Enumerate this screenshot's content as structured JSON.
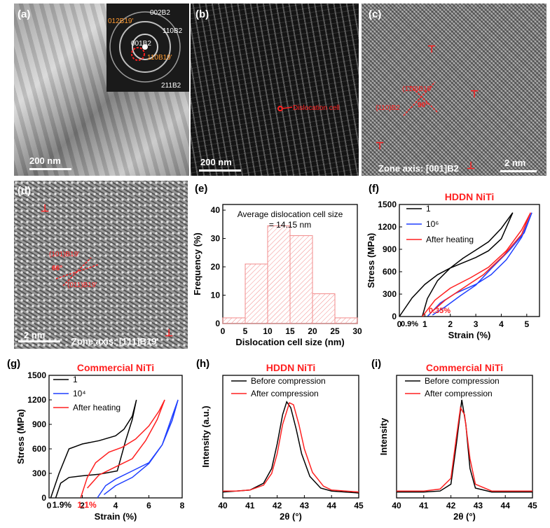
{
  "panels": {
    "a": {
      "label": "(a)",
      "scale": "200 nm",
      "saed": [
        "002B2",
        "110B2",
        "001B2",
        "211B2",
        "012B19'",
        "110B19'"
      ]
    },
    "b": {
      "label": "(b)",
      "scale": "200 nm",
      "annotation": "Dislocation cell"
    },
    "c": {
      "label": "(c)",
      "scale": "2 nm",
      "zone": "Zone axis: [001]B2",
      "plane1": "(1̄10)B19'",
      "plane2": "(110)B2",
      "angle": "90°"
    },
    "d": {
      "label": "(d)",
      "scale": "2 nm",
      "zone": "Zone axis: [1̄11]B19'",
      "plane1": "(101)B19'",
      "plane2": "(011)B19'",
      "angle": "66°"
    }
  },
  "colors": {
    "black": "#000000",
    "blue": "#1f3fff",
    "red": "#ff2020",
    "hist": "#f28b8b"
  },
  "chart_data": [
    {
      "id": "e",
      "label": "(e)",
      "type": "bar",
      "title": "",
      "annotation": "Average dislocation cell size\n= 14.15 nm",
      "xlabel": "Dislocation cell size (nm)",
      "ylabel": "Frequency (%)",
      "bins": [
        [
          0,
          5
        ],
        [
          5,
          10
        ],
        [
          10,
          15
        ],
        [
          15,
          20
        ],
        [
          20,
          25
        ],
        [
          25,
          30
        ]
      ],
      "values": [
        2,
        21,
        34.5,
        31,
        10.5,
        2
      ],
      "xlim": [
        0,
        30
      ],
      "ylim": [
        0,
        42
      ],
      "xticks": [
        0,
        5,
        10,
        15,
        20,
        25,
        30
      ],
      "yticks": [
        0,
        10,
        20,
        30,
        40
      ]
    },
    {
      "id": "f",
      "label": "(f)",
      "type": "line",
      "title": "HDDN NiTi",
      "xlabel": "Strain (%)",
      "ylabel": "Stress (MPa)",
      "xlim": [
        0,
        5.5
      ],
      "ylim": [
        0,
        1500
      ],
      "xticks": [
        0,
        1,
        2,
        3,
        4,
        5
      ],
      "yticks": [
        0,
        300,
        600,
        900,
        1200,
        1500
      ],
      "series": [
        {
          "name": "1",
          "color": "#000000",
          "points": [
            [
              0,
              0
            ],
            [
              0.5,
              250
            ],
            [
              1.0,
              430
            ],
            [
              1.5,
              560
            ],
            [
              2,
              650
            ],
            [
              2.5,
              720
            ],
            [
              3,
              790
            ],
            [
              3.5,
              880
            ],
            [
              4,
              1040
            ],
            [
              4.45,
              1390
            ],
            [
              4.0,
              1180
            ],
            [
              3.5,
              1000
            ],
            [
              3,
              890
            ],
            [
              2.5,
              780
            ],
            [
              2,
              650
            ],
            [
              1.5,
              480
            ],
            [
              1.1,
              240
            ],
            [
              0.9,
              0
            ]
          ]
        },
        {
          "name": "10⁶",
          "color": "#1f3fff",
          "points": [
            [
              1.1,
              0
            ],
            [
              1.6,
              180
            ],
            [
              2.2,
              310
            ],
            [
              3,
              430
            ],
            [
              3.6,
              560
            ],
            [
              4.2,
              760
            ],
            [
              4.8,
              1060
            ],
            [
              5.2,
              1390
            ],
            [
              4.9,
              1120
            ],
            [
              4.3,
              880
            ],
            [
              3.6,
              640
            ],
            [
              3,
              420
            ],
            [
              2.4,
              280
            ],
            [
              1.8,
              130
            ],
            [
              1.3,
              20
            ]
          ]
        },
        {
          "name": "After heating",
          "color": "#ff2020",
          "points": [
            [
              0.9,
              0
            ],
            [
              1.4,
              220
            ],
            [
              2.0,
              380
            ],
            [
              2.8,
              520
            ],
            [
              3.5,
              660
            ],
            [
              4.2,
              880
            ],
            [
              4.8,
              1160
            ],
            [
              5.15,
              1390
            ],
            [
              4.8,
              1100
            ],
            [
              4.1,
              820
            ],
            [
              3.3,
              560
            ],
            [
              2.5,
              380
            ],
            [
              1.8,
              220
            ],
            [
              1.2,
              40
            ]
          ]
        }
      ],
      "annotations": [
        "0.9%",
        "0.35%"
      ]
    },
    {
      "id": "g",
      "label": "(g)",
      "type": "line",
      "title": "Commercial NiTi",
      "xlabel": "Strain (%)",
      "ylabel": "Stress (MPa)",
      "xlim": [
        0,
        8
      ],
      "ylim": [
        0,
        1500
      ],
      "xticks": [
        0,
        2,
        4,
        6,
        8
      ],
      "yticks": [
        0,
        300,
        600,
        900,
        1200,
        1500
      ],
      "series": [
        {
          "name": "1",
          "color": "#000000",
          "points": [
            [
              0.1,
              0
            ],
            [
              0.6,
              300
            ],
            [
              1.2,
              600
            ],
            [
              2,
              660
            ],
            [
              3,
              700
            ],
            [
              4,
              760
            ],
            [
              4.5,
              840
            ],
            [
              5,
              1000
            ],
            [
              5.25,
              1200
            ],
            [
              5,
              960
            ],
            [
              4.6,
              700
            ],
            [
              4.1,
              330
            ],
            [
              3,
              290
            ],
            [
              2,
              270
            ],
            [
              1.2,
              250
            ],
            [
              0.7,
              180
            ],
            [
              0.4,
              0
            ]
          ]
        },
        {
          "name": "10⁴",
          "color": "#1f3fff",
          "points": [
            [
              2.9,
              0
            ],
            [
              3.4,
              150
            ],
            [
              4,
              230
            ],
            [
              5,
              330
            ],
            [
              6,
              430
            ],
            [
              6.8,
              650
            ],
            [
              7.4,
              1000
            ],
            [
              7.75,
              1200
            ],
            [
              7.4,
              950
            ],
            [
              6.8,
              650
            ],
            [
              6,
              420
            ],
            [
              5,
              250
            ],
            [
              4,
              150
            ],
            [
              3.3,
              40
            ]
          ]
        },
        {
          "name": "After heating",
          "color": "#ff2020",
          "points": [
            [
              1.9,
              0
            ],
            [
              2.3,
              250
            ],
            [
              2.8,
              430
            ],
            [
              3.6,
              560
            ],
            [
              4.4,
              620
            ],
            [
              5.2,
              720
            ],
            [
              6,
              880
            ],
            [
              6.6,
              1060
            ],
            [
              6.95,
              1200
            ],
            [
              6.5,
              960
            ],
            [
              5.8,
              700
            ],
            [
              5,
              480
            ],
            [
              4,
              380
            ],
            [
              3,
              280
            ],
            [
              2.3,
              120
            ]
          ]
        }
      ],
      "annotations": [
        "1.9%",
        "1.1%"
      ]
    },
    {
      "id": "h",
      "label": "(h)",
      "type": "line",
      "title": "HDDN NiTi",
      "xlabel": "2θ (°)",
      "ylabel": "Intensity (a.u.)",
      "xlim": [
        40,
        45
      ],
      "ylim": [
        0,
        1.25
      ],
      "xticks": [
        40,
        41,
        42,
        43,
        44,
        45
      ],
      "series": [
        {
          "name": "Before compression",
          "color": "#000000",
          "points": [
            [
              40,
              0.06
            ],
            [
              40.5,
              0.07
            ],
            [
              41,
              0.08
            ],
            [
              41.5,
              0.15
            ],
            [
              41.8,
              0.3
            ],
            [
              42,
              0.55
            ],
            [
              42.2,
              0.85
            ],
            [
              42.35,
              0.98
            ],
            [
              42.5,
              0.92
            ],
            [
              42.7,
              0.7
            ],
            [
              42.9,
              0.45
            ],
            [
              43.2,
              0.22
            ],
            [
              43.6,
              0.1
            ],
            [
              44,
              0.07
            ],
            [
              45,
              0.05
            ]
          ]
        },
        {
          "name": "After compression",
          "color": "#ff2020",
          "points": [
            [
              40,
              0.07
            ],
            [
              40.5,
              0.07
            ],
            [
              41,
              0.08
            ],
            [
              41.5,
              0.13
            ],
            [
              41.8,
              0.25
            ],
            [
              42,
              0.45
            ],
            [
              42.2,
              0.75
            ],
            [
              42.45,
              0.97
            ],
            [
              42.6,
              0.95
            ],
            [
              42.8,
              0.75
            ],
            [
              43,
              0.5
            ],
            [
              43.3,
              0.26
            ],
            [
              43.7,
              0.12
            ],
            [
              44,
              0.08
            ],
            [
              45,
              0.06
            ]
          ]
        }
      ]
    },
    {
      "id": "i",
      "label": "(i)",
      "type": "line",
      "title": "Commercial NiTi",
      "xlabel": "2θ (°)",
      "ylabel": "Intensity",
      "xlim": [
        40,
        45
      ],
      "ylim": [
        0,
        1.25
      ],
      "xticks": [
        40,
        41,
        42,
        43,
        44,
        45
      ],
      "series": [
        {
          "name": "Before compression",
          "color": "#000000",
          "points": [
            [
              40,
              0.06
            ],
            [
              41,
              0.06
            ],
            [
              41.6,
              0.07
            ],
            [
              42,
              0.14
            ],
            [
              42.2,
              0.55
            ],
            [
              42.4,
              1.0
            ],
            [
              42.55,
              0.75
            ],
            [
              42.7,
              0.3
            ],
            [
              42.9,
              0.1
            ],
            [
              43.5,
              0.06
            ],
            [
              45,
              0.06
            ]
          ]
        },
        {
          "name": "After compression",
          "color": "#ff2020",
          "points": [
            [
              40,
              0.07
            ],
            [
              41,
              0.07
            ],
            [
              41.6,
              0.09
            ],
            [
              42,
              0.2
            ],
            [
              42.2,
              0.62
            ],
            [
              42.35,
              0.92
            ],
            [
              42.5,
              0.85
            ],
            [
              42.7,
              0.4
            ],
            [
              42.9,
              0.14
            ],
            [
              43.5,
              0.07
            ],
            [
              45,
              0.07
            ]
          ]
        }
      ]
    }
  ]
}
